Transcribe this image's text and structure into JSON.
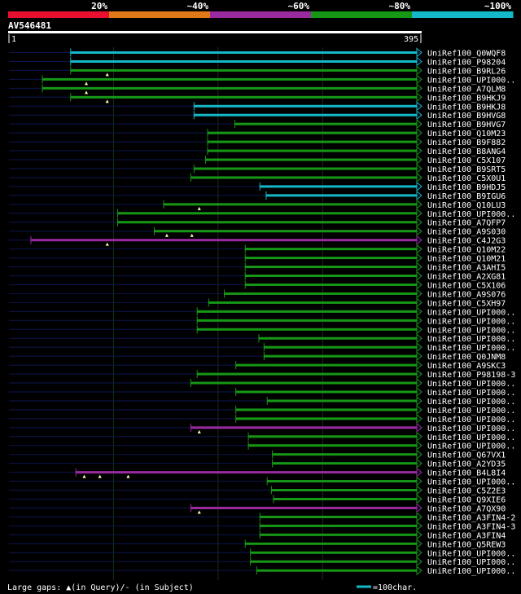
{
  "chart_data": {
    "type": "alignment",
    "query": {
      "name": "AV546481",
      "start": "1",
      "end": "395",
      "length": 395
    },
    "identity_scale": {
      "labels": [
        "20%",
        "~40%",
        "~60%",
        "~80%",
        "~100%"
      ],
      "colors": [
        "#e8102e",
        "#e07818",
        "#9a2aa0",
        "#169816",
        "#14b8c8"
      ]
    },
    "legend": {
      "gaps_text": "Large gaps: ",
      "gaps_query_text": "(in Query)/",
      "gaps_subject_text": " (in Subject)",
      "scale_text": "=100char."
    },
    "hits": [
      {
        "name": "UniRef100_Q0WQF8",
        "start": 60,
        "end": 395,
        "color": "#14b8c8"
      },
      {
        "name": "UniRef100_P98204",
        "start": 60,
        "end": 395,
        "color": "#14b8c8"
      },
      {
        "name": "UniRef100_B9RL26",
        "start": 60,
        "end": 395,
        "color": "#169816",
        "marks": [
          95
        ]
      },
      {
        "name": "UniRef100_UPI000..",
        "start": 33,
        "end": 395,
        "color": "#169816",
        "marks": [
          75
        ]
      },
      {
        "name": "UniRef100_A7QLM8",
        "start": 33,
        "end": 395,
        "color": "#169816",
        "marks": [
          75
        ]
      },
      {
        "name": "UniRef100_B9HKJ9",
        "start": 60,
        "end": 395,
        "color": "#169816",
        "marks": [
          95
        ]
      },
      {
        "name": "UniRef100_B9HKJ8",
        "start": 178,
        "end": 395,
        "color": "#14b8c8"
      },
      {
        "name": "UniRef100_B9HVG8",
        "start": 178,
        "end": 395,
        "color": "#14b8c8"
      },
      {
        "name": "UniRef100_B9HVG7",
        "start": 217,
        "end": 395,
        "color": "#169816"
      },
      {
        "name": "UniRef100_Q10M23",
        "start": 191,
        "end": 395,
        "color": "#169816"
      },
      {
        "name": "UniRef100_B9F882",
        "start": 191,
        "end": 395,
        "color": "#169816"
      },
      {
        "name": "UniRef100_B8ANG4",
        "start": 191,
        "end": 395,
        "color": "#169816"
      },
      {
        "name": "UniRef100_C5X107",
        "start": 189,
        "end": 395,
        "color": "#169816"
      },
      {
        "name": "UniRef100_B9SRT5",
        "start": 178,
        "end": 395,
        "color": "#169816"
      },
      {
        "name": "UniRef100_C5X0U1",
        "start": 175,
        "end": 395,
        "color": "#169816"
      },
      {
        "name": "UniRef100_B9HDJ5",
        "start": 241,
        "end": 395,
        "color": "#14b8c8"
      },
      {
        "name": "UniRef100_B9IGU6",
        "start": 247,
        "end": 395,
        "color": "#14b8c8"
      },
      {
        "name": "UniRef100_Q10LU3",
        "start": 149,
        "end": 395,
        "color": "#169816",
        "marks": [
          183
        ]
      },
      {
        "name": "UniRef100_UPI000..",
        "start": 105,
        "end": 395,
        "color": "#169816"
      },
      {
        "name": "UniRef100_A7QFP7",
        "start": 105,
        "end": 395,
        "color": "#169816"
      },
      {
        "name": "UniRef100_A9S030",
        "start": 140,
        "end": 395,
        "color": "#169816",
        "marks": [
          152,
          176
        ]
      },
      {
        "name": "UniRef100_C4J2G3",
        "start": 22,
        "end": 395,
        "color": "#9a2aa0",
        "marks": [
          95
        ]
      },
      {
        "name": "UniRef100_Q10M22",
        "start": 227,
        "end": 395,
        "color": "#169816"
      },
      {
        "name": "UniRef100_Q10M21",
        "start": 227,
        "end": 395,
        "color": "#169816"
      },
      {
        "name": "UniRef100_A3AHI5",
        "start": 227,
        "end": 395,
        "color": "#169816"
      },
      {
        "name": "UniRef100_A2XG81",
        "start": 227,
        "end": 395,
        "color": "#169816"
      },
      {
        "name": "UniRef100_C5X106",
        "start": 227,
        "end": 395,
        "color": "#169816"
      },
      {
        "name": "UniRef100_A9S076",
        "start": 207,
        "end": 395,
        "color": "#169816"
      },
      {
        "name": "UniRef100_C5XH97",
        "start": 192,
        "end": 395,
        "color": "#169816"
      },
      {
        "name": "UniRef100_UPI000..",
        "start": 181,
        "end": 395,
        "color": "#169816"
      },
      {
        "name": "UniRef100_UPI000..",
        "start": 181,
        "end": 395,
        "color": "#169816"
      },
      {
        "name": "UniRef100_UPI000..",
        "start": 181,
        "end": 395,
        "color": "#169816"
      },
      {
        "name": "UniRef100_UPI000..",
        "start": 240,
        "end": 395,
        "color": "#169816"
      },
      {
        "name": "UniRef100_UPI000..",
        "start": 245,
        "end": 395,
        "color": "#169816"
      },
      {
        "name": "UniRef100_Q0JNM8",
        "start": 245,
        "end": 395,
        "color": "#169816"
      },
      {
        "name": "UniRef100_A9SKC3",
        "start": 218,
        "end": 395,
        "color": "#169816"
      },
      {
        "name": "UniRef100_P98198-3",
        "start": 181,
        "end": 395,
        "color": "#169816"
      },
      {
        "name": "UniRef100_UPI000..",
        "start": 175,
        "end": 395,
        "color": "#169816"
      },
      {
        "name": "UniRef100_UPI000..",
        "start": 218,
        "end": 395,
        "color": "#169816"
      },
      {
        "name": "UniRef100_UPI000..",
        "start": 248,
        "end": 395,
        "color": "#169816"
      },
      {
        "name": "UniRef100_UPI000..",
        "start": 218,
        "end": 395,
        "color": "#169816"
      },
      {
        "name": "UniRef100_UPI000..",
        "start": 218,
        "end": 395,
        "color": "#169816"
      },
      {
        "name": "UniRef100_UPI000..",
        "start": 175,
        "end": 395,
        "color": "#9a2aa0",
        "marks": [
          183
        ]
      },
      {
        "name": "UniRef100_UPI000..",
        "start": 230,
        "end": 395,
        "color": "#169816"
      },
      {
        "name": "UniRef100_UPI000..",
        "start": 230,
        "end": 395,
        "color": "#169816"
      },
      {
        "name": "UniRef100_Q67VX1",
        "start": 253,
        "end": 395,
        "color": "#169816"
      },
      {
        "name": "UniRef100_A2YD35",
        "start": 253,
        "end": 395,
        "color": "#169816"
      },
      {
        "name": "UniRef100_B4L8I4",
        "start": 65,
        "end": 395,
        "color": "#9a2aa0",
        "marks": [
          73,
          88,
          115
        ]
      },
      {
        "name": "UniRef100_UPI000..",
        "start": 248,
        "end": 395,
        "color": "#169816"
      },
      {
        "name": "UniRef100_C5Z2E3",
        "start": 252,
        "end": 395,
        "color": "#169816"
      },
      {
        "name": "UniRef100_Q9XIE6",
        "start": 254,
        "end": 395,
        "color": "#169816"
      },
      {
        "name": "UniRef100_A7QX90",
        "start": 175,
        "end": 395,
        "color": "#9a2aa0",
        "marks": [
          183
        ]
      },
      {
        "name": "UniRef100_A3FIN4-2",
        "start": 241,
        "end": 395,
        "color": "#169816"
      },
      {
        "name": "UniRef100_A3FIN4-3",
        "start": 241,
        "end": 395,
        "color": "#169816"
      },
      {
        "name": "UniRef100_A3FIN4",
        "start": 241,
        "end": 395,
        "color": "#169816"
      },
      {
        "name": "UniRef100_Q5REW3",
        "start": 227,
        "end": 395,
        "color": "#169816"
      },
      {
        "name": "UniRef100_UPI000..",
        "start": 232,
        "end": 395,
        "color": "#169816"
      },
      {
        "name": "UniRef100_UPI000..",
        "start": 232,
        "end": 395,
        "color": "#169816"
      },
      {
        "name": "UniRef100_UPI000..",
        "start": 238,
        "end": 395,
        "color": "#169816"
      }
    ]
  }
}
